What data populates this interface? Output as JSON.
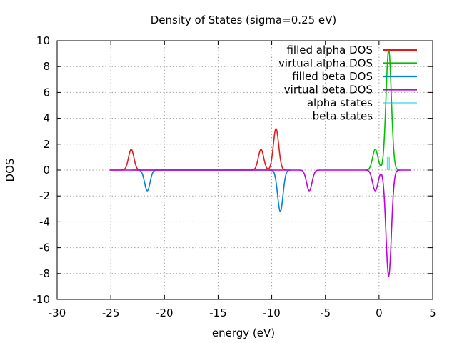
{
  "chart_data": {
    "type": "line",
    "title": "Density of States (sigma=0.25 eV)",
    "xlabel": "energy (eV)",
    "ylabel": "DOS",
    "xlim": [
      -30,
      5
    ],
    "ylim": [
      -10,
      10
    ],
    "xticks": [
      -30,
      -25,
      -20,
      -15,
      -10,
      -5,
      0,
      5
    ],
    "yticks": [
      -10,
      -8,
      -6,
      -4,
      -2,
      0,
      2,
      4,
      6,
      8,
      10
    ],
    "grid": true,
    "legend_position": "top-right",
    "domain": [
      -25.1,
      3.0
    ],
    "sigma": 0.25,
    "series": [
      {
        "name": "filled alpha DOS",
        "color": "#e41a1c",
        "sign": 1,
        "peaks": [
          {
            "x": -23.1,
            "height": 1.6
          },
          {
            "x": -11.0,
            "height": 1.6
          },
          {
            "x": -9.6,
            "height": 3.2
          }
        ],
        "range": [
          -25.1,
          -8.6
        ]
      },
      {
        "name": "virtual alpha DOS",
        "color": "#00c000",
        "sign": 1,
        "peaks": [
          {
            "x": -0.35,
            "height": 1.6
          },
          {
            "x": 0.9,
            "height": 9.3
          }
        ],
        "range": [
          -1.2,
          1.9
        ]
      },
      {
        "name": "filled beta DOS",
        "color": "#0080e0",
        "sign": -1,
        "peaks": [
          {
            "x": -21.6,
            "height": 1.6
          },
          {
            "x": -9.2,
            "height": 3.2
          }
        ],
        "range": [
          -23.0,
          -8.2
        ]
      },
      {
        "name": "virtual beta DOS",
        "color": "#c000e0",
        "sign": -1,
        "peaks": [
          {
            "x": -6.5,
            "height": 1.6
          },
          {
            "x": -0.35,
            "height": 1.6
          },
          {
            "x": 0.9,
            "height": 8.2
          }
        ],
        "range": [
          -25.1,
          3.0
        ]
      }
    ],
    "states": [
      {
        "name": "alpha states",
        "color": "#00d0d0",
        "sign": 1,
        "x": [
          0.65,
          0.8,
          0.95
        ]
      },
      {
        "name": "beta states",
        "color": "#a05a00",
        "sign": 1,
        "x": []
      }
    ]
  }
}
